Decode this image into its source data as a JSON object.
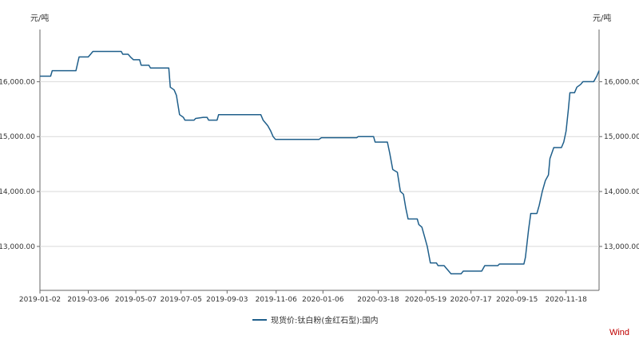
{
  "chart_data": {
    "type": "line",
    "title": "",
    "y_unit_left": "元/吨",
    "y_unit_right": "元/吨",
    "ylim": [
      12200,
      16950
    ],
    "y_ticks": [
      13000,
      14000,
      15000,
      16000
    ],
    "y_tick_labels": [
      "13,000.00",
      "14,000.00",
      "15,000.00",
      "16,000.00"
    ],
    "xlim": [
      "2019-01-02",
      "2020-12-31"
    ],
    "x_tick_labels": [
      "2019-01-02",
      "2019-03-06",
      "2019-05-07",
      "2019-07-05",
      "2019-09-03",
      "2019-11-06",
      "2020-01-06",
      "2020-03-18",
      "2020-05-19",
      "2020-07-17",
      "2020-09-15",
      "2020-11-18"
    ],
    "grid": true,
    "legend_position": "bottom-center",
    "colors": {
      "line": "#1f5f8b",
      "grid": "#d9d9d9",
      "axis": "#666666",
      "watermark": "#c00000"
    },
    "series": [
      {
        "name": "现货价:钛白粉(金红石型):国内",
        "points": [
          [
            "2019-01-02",
            16100
          ],
          [
            "2019-01-16",
            16100
          ],
          [
            "2019-01-18",
            16200
          ],
          [
            "2019-02-18",
            16200
          ],
          [
            "2019-02-22",
            16450
          ],
          [
            "2019-03-06",
            16450
          ],
          [
            "2019-03-09",
            16500
          ],
          [
            "2019-03-12",
            16550
          ],
          [
            "2019-04-18",
            16550
          ],
          [
            "2019-04-20",
            16500
          ],
          [
            "2019-04-27",
            16500
          ],
          [
            "2019-04-30",
            16450
          ],
          [
            "2019-05-04",
            16400
          ],
          [
            "2019-05-12",
            16400
          ],
          [
            "2019-05-14",
            16300
          ],
          [
            "2019-05-24",
            16300
          ],
          [
            "2019-05-26",
            16250
          ],
          [
            "2019-06-19",
            16250
          ],
          [
            "2019-06-21",
            15900
          ],
          [
            "2019-06-26",
            15850
          ],
          [
            "2019-06-29",
            15750
          ],
          [
            "2019-07-03",
            15400
          ],
          [
            "2019-07-08",
            15350
          ],
          [
            "2019-07-10",
            15300
          ],
          [
            "2019-07-22",
            15300
          ],
          [
            "2019-07-24",
            15330
          ],
          [
            "2019-08-03",
            15350
          ],
          [
            "2019-08-08",
            15350
          ],
          [
            "2019-08-10",
            15300
          ],
          [
            "2019-08-21",
            15300
          ],
          [
            "2019-08-23",
            15400
          ],
          [
            "2019-10-17",
            15400
          ],
          [
            "2019-10-20",
            15300
          ],
          [
            "2019-10-26",
            15200
          ],
          [
            "2019-10-30",
            15100
          ],
          [
            "2019-11-02",
            15000
          ],
          [
            "2019-11-05",
            14950
          ],
          [
            "2020-01-01",
            14950
          ],
          [
            "2020-01-04",
            14980
          ],
          [
            "2020-02-19",
            14980
          ],
          [
            "2020-02-21",
            15000
          ],
          [
            "2020-03-12",
            15000
          ],
          [
            "2020-03-14",
            14900
          ],
          [
            "2020-03-30",
            14900
          ],
          [
            "2020-04-02",
            14700
          ],
          [
            "2020-04-06",
            14400
          ],
          [
            "2020-04-12",
            14350
          ],
          [
            "2020-04-16",
            14000
          ],
          [
            "2020-04-20",
            13950
          ],
          [
            "2020-04-23",
            13700
          ],
          [
            "2020-04-26",
            13500
          ],
          [
            "2020-05-08",
            13500
          ],
          [
            "2020-05-10",
            13400
          ],
          [
            "2020-05-14",
            13350
          ],
          [
            "2020-05-17",
            13200
          ],
          [
            "2020-05-21",
            13000
          ],
          [
            "2020-05-25",
            12700
          ],
          [
            "2020-06-02",
            12700
          ],
          [
            "2020-06-04",
            12650
          ],
          [
            "2020-06-12",
            12650
          ],
          [
            "2020-06-15",
            12600
          ],
          [
            "2020-06-18",
            12550
          ],
          [
            "2020-06-21",
            12500
          ],
          [
            "2020-07-04",
            12500
          ],
          [
            "2020-07-07",
            12550
          ],
          [
            "2020-07-31",
            12550
          ],
          [
            "2020-08-04",
            12650
          ],
          [
            "2020-08-21",
            12650
          ],
          [
            "2020-08-23",
            12680
          ],
          [
            "2020-09-24",
            12680
          ],
          [
            "2020-09-26",
            12800
          ],
          [
            "2020-09-30",
            13300
          ],
          [
            "2020-10-03",
            13600
          ],
          [
            "2020-10-11",
            13600
          ],
          [
            "2020-10-14",
            13750
          ],
          [
            "2020-10-18",
            14000
          ],
          [
            "2020-10-22",
            14200
          ],
          [
            "2020-10-26",
            14300
          ],
          [
            "2020-10-28",
            14600
          ],
          [
            "2020-11-02",
            14800
          ],
          [
            "2020-11-12",
            14800
          ],
          [
            "2020-11-15",
            14900
          ],
          [
            "2020-11-18",
            15100
          ],
          [
            "2020-11-21",
            15500
          ],
          [
            "2020-11-23",
            15800
          ],
          [
            "2020-11-29",
            15800
          ],
          [
            "2020-12-02",
            15900
          ],
          [
            "2020-12-07",
            15950
          ],
          [
            "2020-12-10",
            16000
          ],
          [
            "2020-12-24",
            16000
          ],
          [
            "2020-12-28",
            16100
          ],
          [
            "2020-12-31",
            16200
          ]
        ]
      }
    ]
  },
  "watermark": "Wind"
}
